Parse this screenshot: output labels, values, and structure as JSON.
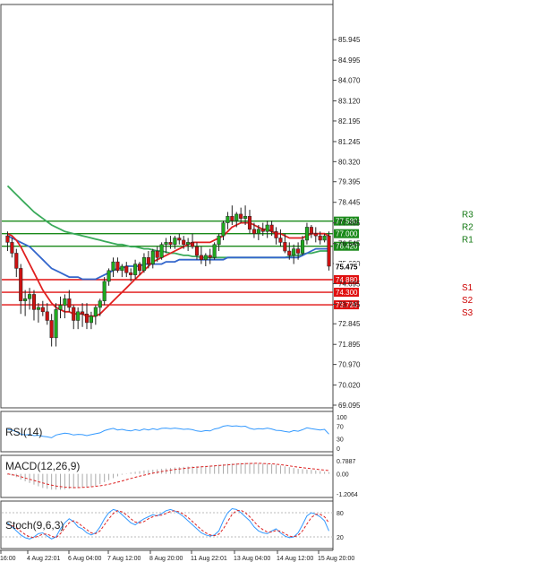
{
  "chart_data": {
    "type": "candlestick",
    "main": {
      "ylim": [
        69.095,
        86.945
      ],
      "y_ticks": [
        "85.945",
        "84.995",
        "84.070",
        "83.120",
        "82.195",
        "81.245",
        "80.320",
        "79.395",
        "78.445",
        "77.495",
        "76.545",
        "75.620",
        "74.695",
        "73.745",
        "72.845",
        "71.895",
        "70.970",
        "70.020",
        "69.095"
      ],
      "current_price": "75.475",
      "pivot_levels": [
        {
          "name": "R3",
          "value": 77.58,
          "label": "77.580",
          "color": "#1a8a1a"
        },
        {
          "name": "R2",
          "value": 77.0,
          "label": "77.000",
          "color": "#1a8a1a"
        },
        {
          "name": "R1",
          "value": 76.42,
          "label": "76.420",
          "color": "#1a8a1a"
        },
        {
          "name": "S1",
          "value": 74.88,
          "label": "74.880",
          "color": "#e01010"
        },
        {
          "name": "S2",
          "value": 74.3,
          "label": "74.300",
          "color": "#e01010"
        },
        {
          "name": "S3",
          "value": 73.72,
          "label": "73.720",
          "color": "#e01010"
        }
      ],
      "candles_ohlc": [
        [
          76.9,
          77.1,
          76.2,
          76.6
        ],
        [
          76.6,
          76.8,
          75.9,
          76.1
        ],
        [
          76.1,
          76.3,
          75.0,
          75.4
        ],
        [
          75.4,
          75.6,
          73.3,
          73.9
        ],
        [
          73.9,
          74.4,
          73.2,
          74.0
        ],
        [
          74.0,
          74.5,
          73.5,
          74.2
        ],
        [
          74.2,
          74.4,
          73.0,
          73.5
        ],
        [
          73.5,
          73.8,
          72.9,
          73.6
        ],
        [
          73.6,
          73.9,
          73.2,
          73.4
        ],
        [
          73.4,
          73.8,
          72.8,
          73.0
        ],
        [
          73.0,
          73.3,
          71.8,
          72.2
        ],
        [
          72.2,
          73.8,
          71.8,
          73.5
        ],
        [
          73.5,
          74.1,
          73.1,
          73.7
        ],
        [
          73.7,
          74.2,
          73.1,
          74.0
        ],
        [
          74.0,
          74.4,
          73.4,
          73.6
        ],
        [
          73.6,
          73.7,
          72.6,
          73.0
        ],
        [
          73.0,
          73.6,
          72.6,
          73.4
        ],
        [
          73.4,
          73.8,
          72.7,
          73.3
        ],
        [
          73.3,
          73.8,
          72.6,
          72.9
        ],
        [
          72.9,
          73.4,
          72.6,
          73.2
        ],
        [
          73.2,
          73.7,
          72.8,
          73.6
        ],
        [
          73.6,
          74.0,
          73.2,
          73.9
        ],
        [
          73.9,
          75.0,
          73.7,
          74.8
        ],
        [
          74.8,
          75.4,
          74.6,
          75.3
        ],
        [
          75.3,
          75.9,
          75.0,
          75.7
        ],
        [
          75.7,
          75.9,
          75.2,
          75.3
        ],
        [
          75.3,
          75.6,
          75.0,
          75.5
        ],
        [
          75.5,
          75.7,
          75.0,
          75.2
        ],
        [
          75.2,
          75.4,
          74.8,
          75.1
        ],
        [
          75.1,
          75.8,
          74.9,
          75.6
        ],
        [
          75.6,
          75.7,
          75.1,
          75.3
        ],
        [
          75.3,
          76.1,
          75.2,
          75.9
        ],
        [
          75.9,
          76.2,
          75.4,
          75.6
        ],
        [
          75.6,
          76.3,
          75.4,
          76.2
        ],
        [
          76.2,
          76.4,
          75.7,
          75.9
        ],
        [
          75.9,
          76.6,
          75.8,
          76.5
        ],
        [
          76.5,
          76.8,
          76.1,
          76.6
        ],
        [
          76.6,
          76.9,
          76.3,
          76.5
        ],
        [
          76.5,
          76.9,
          76.3,
          76.8
        ],
        [
          76.8,
          77.0,
          76.5,
          76.7
        ],
        [
          76.7,
          76.9,
          76.3,
          76.5
        ],
        [
          76.5,
          76.8,
          76.2,
          76.6
        ],
        [
          76.6,
          77.0,
          76.3,
          76.4
        ],
        [
          76.4,
          76.6,
          75.8,
          76.0
        ],
        [
          76.0,
          76.4,
          75.6,
          75.8
        ],
        [
          75.8,
          76.1,
          75.5,
          76.0
        ],
        [
          76.0,
          76.3,
          75.6,
          75.9
        ],
        [
          75.9,
          76.6,
          75.8,
          76.5
        ],
        [
          76.5,
          77.0,
          76.2,
          76.9
        ],
        [
          76.9,
          77.6,
          76.7,
          77.5
        ],
        [
          77.5,
          78.0,
          77.2,
          77.8
        ],
        [
          77.8,
          78.3,
          77.4,
          77.6
        ],
        [
          77.6,
          78.0,
          77.3,
          77.9
        ],
        [
          77.9,
          78.2,
          77.5,
          77.7
        ],
        [
          77.7,
          78.3,
          77.4,
          77.8
        ],
        [
          77.8,
          78.1,
          77.0,
          77.2
        ],
        [
          77.2,
          77.5,
          76.8,
          77.0
        ],
        [
          77.0,
          77.4,
          76.7,
          77.2
        ],
        [
          77.2,
          77.5,
          76.9,
          77.1
        ],
        [
          77.1,
          77.6,
          76.8,
          77.4
        ],
        [
          77.4,
          77.6,
          76.9,
          77.1
        ],
        [
          77.1,
          77.3,
          76.5,
          76.8
        ],
        [
          76.8,
          77.2,
          76.4,
          76.6
        ],
        [
          76.6,
          77.0,
          76.1,
          76.2
        ],
        [
          76.2,
          76.6,
          75.8,
          76.0
        ],
        [
          76.0,
          76.5,
          75.6,
          76.3
        ],
        [
          76.3,
          76.6,
          75.8,
          76.1
        ],
        [
          76.1,
          76.9,
          76.0,
          76.7
        ],
        [
          76.7,
          77.5,
          76.5,
          77.3
        ],
        [
          77.3,
          77.4,
          76.8,
          77.0
        ],
        [
          77.0,
          77.3,
          76.6,
          76.9
        ],
        [
          76.9,
          77.1,
          76.5,
          76.7
        ],
        [
          76.7,
          77.0,
          76.6,
          76.9
        ],
        [
          76.9,
          77.1,
          75.3,
          75.5
        ]
      ],
      "sma_short_red": [
        77.0,
        76.9,
        76.7,
        76.4,
        76.0,
        75.6,
        75.2,
        74.8,
        74.4,
        74.1,
        73.8,
        73.6,
        73.5,
        73.4,
        73.4,
        73.3,
        73.3,
        73.3,
        73.2,
        73.2,
        73.2,
        73.3,
        73.5,
        73.7,
        73.9,
        74.1,
        74.3,
        74.5,
        74.7,
        74.9,
        75.1,
        75.3,
        75.5,
        75.7,
        75.8,
        75.9,
        76.0,
        76.1,
        76.2,
        76.3,
        76.4,
        76.5,
        76.6,
        76.6,
        76.6,
        76.6,
        76.6,
        76.7,
        76.8,
        76.9,
        77.1,
        77.3,
        77.4,
        77.5,
        77.5,
        77.5,
        77.4,
        77.3,
        77.2,
        77.2,
        77.1,
        77.0,
        77.0,
        76.9,
        76.8,
        76.8,
        76.8,
        76.8,
        76.9,
        77.0,
        77.0,
        77.0,
        77.0,
        76.9
      ],
      "sma_mid_blue": [
        76.9,
        76.8,
        76.7,
        76.6,
        76.5,
        76.4,
        76.2,
        76.0,
        75.8,
        75.6,
        75.4,
        75.3,
        75.2,
        75.1,
        75.0,
        75.0,
        75.0,
        74.9,
        74.9,
        74.9,
        74.9,
        75.0,
        75.1,
        75.2,
        75.3,
        75.4,
        75.4,
        75.5,
        75.5,
        75.5,
        75.5,
        75.6,
        75.6,
        75.6,
        75.6,
        75.6,
        75.7,
        75.7,
        75.7,
        75.8,
        75.8,
        75.8,
        75.8,
        75.8,
        75.8,
        75.8,
        75.8,
        75.8,
        75.8,
        75.8,
        75.9,
        75.9,
        75.9,
        75.9,
        75.9,
        75.9,
        75.9,
        75.9,
        75.9,
        75.9,
        75.9,
        75.9,
        75.9,
        75.9,
        75.9,
        75.9,
        75.9,
        76.0,
        76.1,
        76.2,
        76.3,
        76.3,
        76.3,
        76.3
      ],
      "sma_long_green": [
        79.2,
        79.0,
        78.8,
        78.6,
        78.4,
        78.2,
        78.0,
        77.85,
        77.7,
        77.55,
        77.4,
        77.3,
        77.2,
        77.1,
        77.05,
        77.0,
        76.95,
        76.9,
        76.85,
        76.8,
        76.75,
        76.7,
        76.65,
        76.6,
        76.55,
        76.5,
        76.5,
        76.45,
        76.4,
        76.4,
        76.35,
        76.3,
        76.3,
        76.25,
        76.2,
        76.2,
        76.15,
        76.1,
        76.1,
        76.05,
        76.0,
        76.0,
        75.95,
        75.95,
        75.9,
        75.9,
        75.9,
        75.9,
        75.9,
        75.9,
        75.9,
        75.9,
        75.9,
        75.9,
        75.9,
        75.9,
        75.9,
        75.9,
        75.9,
        75.9,
        75.9,
        75.9,
        75.9,
        75.9,
        75.95,
        76.0,
        76.0,
        76.05,
        76.1,
        76.1,
        76.15,
        76.2,
        76.2,
        76.2
      ]
    },
    "rsi": {
      "title": "RSI(14)",
      "ylim": [
        0,
        100
      ],
      "ticks": [
        "100",
        "70",
        "30",
        "0"
      ],
      "values": [
        60,
        58,
        52,
        45,
        42,
        44,
        40,
        41,
        38,
        36,
        33,
        42,
        45,
        48,
        46,
        42,
        44,
        43,
        40,
        43,
        46,
        49,
        56,
        60,
        63,
        58,
        60,
        57,
        55,
        59,
        56,
        61,
        58,
        62,
        59,
        63,
        64,
        62,
        64,
        62,
        60,
        61,
        59,
        55,
        53,
        56,
        55,
        61,
        64,
        70,
        72,
        70,
        71,
        69,
        70,
        63,
        60,
        62,
        61,
        64,
        61,
        57,
        56,
        53,
        51,
        56,
        54,
        59,
        65,
        62,
        60,
        58,
        60,
        45
      ]
    },
    "macd": {
      "title": "MACD(12,26,9)",
      "ticks": [
        "0.7887",
        "0.00",
        "-1.2064"
      ],
      "ylim": [
        -1.2064,
        0.7887
      ],
      "histogram": [
        -0.05,
        -0.1,
        -0.2,
        -0.35,
        -0.45,
        -0.55,
        -0.65,
        -0.75,
        -0.85,
        -0.9,
        -0.95,
        -0.95,
        -0.95,
        -0.93,
        -0.9,
        -0.88,
        -0.85,
        -0.82,
        -0.8,
        -0.78,
        -0.72,
        -0.62,
        -0.5,
        -0.38,
        -0.26,
        -0.15,
        -0.05,
        0.02,
        0.08,
        0.12,
        0.16,
        0.2,
        0.22,
        0.25,
        0.27,
        0.3,
        0.32,
        0.35,
        0.38,
        0.4,
        0.42,
        0.44,
        0.45,
        0.46,
        0.47,
        0.48,
        0.5,
        0.52,
        0.55,
        0.58,
        0.6,
        0.62,
        0.64,
        0.65,
        0.66,
        0.66,
        0.65,
        0.64,
        0.62,
        0.6,
        0.58,
        0.55,
        0.5,
        0.45,
        0.4,
        0.35,
        0.3,
        0.28,
        0.26,
        0.24,
        0.2,
        0.16,
        0.12,
        0.1
      ],
      "signal": [
        0.0,
        -0.05,
        -0.1,
        -0.17,
        -0.25,
        -0.33,
        -0.4,
        -0.48,
        -0.55,
        -0.62,
        -0.68,
        -0.73,
        -0.77,
        -0.8,
        -0.82,
        -0.83,
        -0.83,
        -0.82,
        -0.8,
        -0.78,
        -0.75,
        -0.72,
        -0.68,
        -0.63,
        -0.57,
        -0.5,
        -0.43,
        -0.35,
        -0.28,
        -0.21,
        -0.14,
        -0.08,
        -0.02,
        0.04,
        0.09,
        0.14,
        0.18,
        0.22,
        0.26,
        0.29,
        0.32,
        0.35,
        0.38,
        0.4,
        0.42,
        0.44,
        0.46,
        0.48,
        0.5,
        0.52,
        0.54,
        0.56,
        0.58,
        0.6,
        0.61,
        0.62,
        0.63,
        0.63,
        0.62,
        0.61,
        0.6,
        0.58,
        0.55,
        0.52,
        0.48,
        0.44,
        0.4,
        0.37,
        0.34,
        0.31,
        0.28,
        0.25,
        0.22,
        0.2
      ]
    },
    "stoch": {
      "title": "Stoch(9,6,3)",
      "ylim": [
        0,
        100
      ],
      "ticks": [
        "80",
        "20"
      ],
      "main_line": [
        55,
        45,
        35,
        25,
        18,
        15,
        20,
        28,
        30,
        22,
        15,
        20,
        40,
        55,
        65,
        58,
        45,
        40,
        30,
        25,
        30,
        45,
        65,
        80,
        88,
        85,
        75,
        65,
        55,
        50,
        58,
        65,
        70,
        75,
        72,
        78,
        85,
        88,
        84,
        78,
        70,
        60,
        50,
        40,
        30,
        25,
        22,
        25,
        35,
        60,
        80,
        90,
        88,
        80,
        70,
        60,
        45,
        35,
        30,
        28,
        35,
        40,
        30,
        22,
        18,
        20,
        30,
        50,
        72,
        80,
        76,
        70,
        60,
        35
      ],
      "signal_line": [
        50,
        48,
        42,
        34,
        26,
        20,
        18,
        22,
        27,
        27,
        22,
        18,
        28,
        42,
        55,
        60,
        55,
        46,
        38,
        30,
        28,
        35,
        50,
        65,
        78,
        85,
        82,
        75,
        65,
        57,
        55,
        58,
        65,
        70,
        73,
        74,
        78,
        83,
        85,
        82,
        76,
        68,
        58,
        48,
        38,
        30,
        25,
        23,
        27,
        40,
        58,
        76,
        85,
        86,
        80,
        70,
        58,
        46,
        38,
        32,
        32,
        36,
        34,
        28,
        22,
        20,
        24,
        35,
        52,
        68,
        76,
        76,
        70,
        55
      ]
    },
    "x_tick_labels": [
      "16:00",
      "4 Aug 22:01",
      "6 Aug 04:00",
      "7 Aug 12:00",
      "8 Aug 20:00",
      "11 Aug 22:01",
      "13 Aug 04:00",
      "14 Aug 12:00",
      "15 Aug 20:00"
    ]
  }
}
